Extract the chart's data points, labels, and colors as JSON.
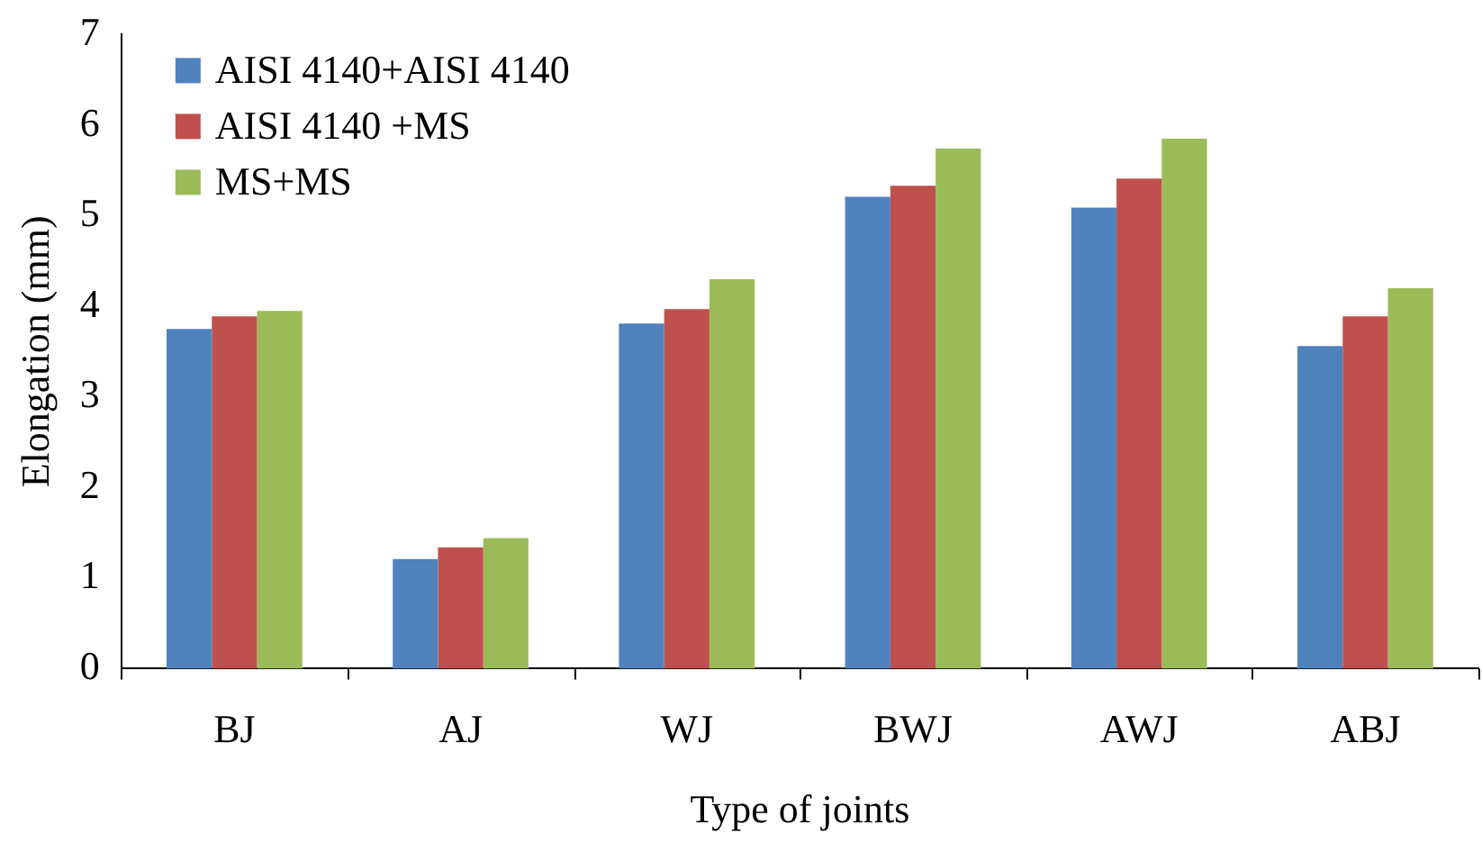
{
  "chart_data": {
    "type": "bar",
    "xlabel": "Type of joints",
    "ylabel": "Elongation (mm)",
    "categories": [
      "BJ",
      "AJ",
      "WJ",
      "BWJ",
      "AWJ",
      "ABJ"
    ],
    "series": [
      {
        "name": "AISI 4140+AISI 4140",
        "color": "#4f81bd",
        "values": [
          3.75,
          1.21,
          3.81,
          5.21,
          5.09,
          3.56
        ]
      },
      {
        "name": "AISI 4140 +MS",
        "color": "#c0504d",
        "values": [
          3.89,
          1.34,
          3.97,
          5.33,
          5.41,
          3.89
        ]
      },
      {
        "name": "MS+MS",
        "color": "#9bbb59",
        "values": [
          3.95,
          1.44,
          4.3,
          5.74,
          5.85,
          4.2
        ]
      }
    ],
    "ylim": [
      0,
      7
    ],
    "yticks": [
      0,
      1,
      2,
      3,
      4,
      5,
      6,
      7
    ],
    "grid": false,
    "legend": "top left"
  }
}
